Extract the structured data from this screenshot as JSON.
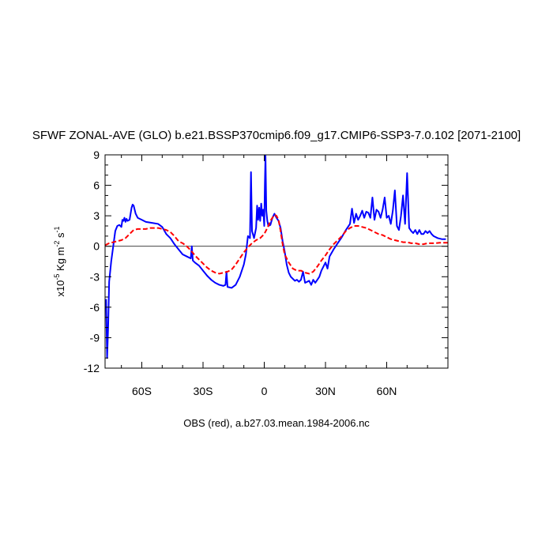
{
  "chart_data": {
    "type": "line",
    "title": "SFWF ZONAL-AVE (GLO) b.e21.BSSP370cmip6.f09_g17.CMIP6-SSP3-7.0.102 [2071-2100]",
    "xlabel": "OBS (red), a.b27.03.mean.1984-2006.nc",
    "ylabel": {
      "prefix": "x10",
      "exp1": "-5",
      "mid": " Kg m",
      "exp2": "-2",
      "mid2": " s",
      "exp3": "-1"
    },
    "xlim": [
      -78,
      90
    ],
    "ylim": [
      -12,
      9
    ],
    "x_ticks": [
      {
        "value": -60,
        "label": "60S"
      },
      {
        "value": -30,
        "label": "30S"
      },
      {
        "value": 0,
        "label": "0"
      },
      {
        "value": 30,
        "label": "30N"
      },
      {
        "value": 60,
        "label": "60N"
      }
    ],
    "y_ticks": [
      {
        "value": 9,
        "label": "9"
      },
      {
        "value": 6,
        "label": "6"
      },
      {
        "value": 3,
        "label": "3"
      },
      {
        "value": 0,
        "label": "0"
      },
      {
        "value": -3,
        "label": "-3"
      },
      {
        "value": -6,
        "label": "-6"
      },
      {
        "value": -9,
        "label": "-9"
      },
      {
        "value": -12,
        "label": "-12"
      }
    ],
    "zero_line": true,
    "series": [
      {
        "color": "#0000ff",
        "style": "solid",
        "points": [
          [
            -77.5,
            -5.2
          ],
          [
            -77,
            -11
          ],
          [
            -76.5,
            -8
          ],
          [
            -76,
            -3.5
          ],
          [
            -75,
            -1.5
          ],
          [
            -74,
            0
          ],
          [
            -73,
            1.5
          ],
          [
            -72,
            2.0
          ],
          [
            -71,
            2.1
          ],
          [
            -70,
            1.9
          ],
          [
            -69.5,
            2.6
          ],
          [
            -69,
            2.5
          ],
          [
            -68.5,
            2.8
          ],
          [
            -68,
            2.4
          ],
          [
            -67.5,
            2.7
          ],
          [
            -67,
            2.5
          ],
          [
            -66,
            2.6
          ],
          [
            -65,
            3.8
          ],
          [
            -64.5,
            4.1
          ],
          [
            -64,
            4.0
          ],
          [
            -63,
            3.2
          ],
          [
            -62,
            2.8
          ],
          [
            -60,
            2.6
          ],
          [
            -58,
            2.4
          ],
          [
            -55,
            2.3
          ],
          [
            -52,
            2.2
          ],
          [
            -50,
            1.9
          ],
          [
            -48,
            1.2
          ],
          [
            -46,
            0.8
          ],
          [
            -44,
            0.2
          ],
          [
            -42,
            -0.3
          ],
          [
            -40,
            -0.8
          ],
          [
            -38,
            -1.0
          ],
          [
            -36,
            -1.2
          ],
          [
            -35.5,
            0.0
          ],
          [
            -35,
            -1.4
          ],
          [
            -34,
            -1.6
          ],
          [
            -32,
            -1.9
          ],
          [
            -30,
            -2.4
          ],
          [
            -28,
            -2.9
          ],
          [
            -26,
            -3.3
          ],
          [
            -24,
            -3.6
          ],
          [
            -22,
            -3.8
          ],
          [
            -20,
            -3.9
          ],
          [
            -19,
            -3.8
          ],
          [
            -18.5,
            -2.5
          ],
          [
            -18,
            -4.0
          ],
          [
            -16,
            -4.1
          ],
          [
            -14,
            -3.8
          ],
          [
            -12,
            -3.0
          ],
          [
            -10,
            -1.8
          ],
          [
            -9,
            -0.8
          ],
          [
            -8,
            1.0
          ],
          [
            -7,
            0.8
          ],
          [
            -6.5,
            7.3
          ],
          [
            -6,
            1.5
          ],
          [
            -5,
            0.8
          ],
          [
            -4,
            1.8
          ],
          [
            -3.5,
            4.0
          ],
          [
            -3,
            2.6
          ],
          [
            -2.5,
            3.8
          ],
          [
            -2,
            2.5
          ],
          [
            -1.5,
            4.2
          ],
          [
            -1,
            3.0
          ],
          [
            -0.5,
            3.6
          ],
          [
            0,
            2.0
          ],
          [
            0.3,
            6.0
          ],
          [
            0.6,
            8.9
          ],
          [
            1,
            3.5
          ],
          [
            1.5,
            2.5
          ],
          [
            2,
            2.0
          ],
          [
            3,
            2.1
          ],
          [
            4,
            2.8
          ],
          [
            5,
            3.2
          ],
          [
            6,
            2.8
          ],
          [
            7,
            2.5
          ],
          [
            8,
            1.8
          ],
          [
            9,
            0.5
          ],
          [
            10,
            -0.5
          ],
          [
            11,
            -1.8
          ],
          [
            12,
            -2.6
          ],
          [
            13,
            -3.0
          ],
          [
            14,
            -3.2
          ],
          [
            15,
            -3.4
          ],
          [
            16,
            -3.3
          ],
          [
            17,
            -3.5
          ],
          [
            18,
            -3.3
          ],
          [
            19,
            -2.5
          ],
          [
            20,
            -3.6
          ],
          [
            22,
            -3.4
          ],
          [
            23,
            -3.8
          ],
          [
            24,
            -3.3
          ],
          [
            25,
            -3.6
          ],
          [
            26,
            -3.3
          ],
          [
            27,
            -3.0
          ],
          [
            28,
            -2.4
          ],
          [
            30,
            -1.6
          ],
          [
            31,
            -2.2
          ],
          [
            32,
            -1.0
          ],
          [
            34,
            -0.3
          ],
          [
            36,
            0.3
          ],
          [
            38,
            0.9
          ],
          [
            40,
            1.6
          ],
          [
            42,
            2.2
          ],
          [
            43,
            3.7
          ],
          [
            44,
            2.3
          ],
          [
            45,
            3.2
          ],
          [
            46,
            2.6
          ],
          [
            47,
            3.0
          ],
          [
            48,
            3.5
          ],
          [
            49,
            2.8
          ],
          [
            50,
            3.4
          ],
          [
            51,
            3.3
          ],
          [
            52,
            2.8
          ],
          [
            53,
            4.8
          ],
          [
            54,
            2.6
          ],
          [
            55,
            3.6
          ],
          [
            56,
            3.4
          ],
          [
            57,
            2.8
          ],
          [
            58,
            3.6
          ],
          [
            59,
            4.8
          ],
          [
            60,
            2.8
          ],
          [
            61,
            3.0
          ],
          [
            62,
            2.2
          ],
          [
            63,
            3.5
          ],
          [
            64,
            5.5
          ],
          [
            65,
            2.0
          ],
          [
            66,
            1.6
          ],
          [
            67,
            3.0
          ],
          [
            68,
            5.0
          ],
          [
            69,
            2.2
          ],
          [
            70,
            7.2
          ],
          [
            71,
            1.8
          ],
          [
            72,
            1.5
          ],
          [
            73,
            1.3
          ],
          [
            74,
            1.6
          ],
          [
            75,
            1.2
          ],
          [
            76,
            1.6
          ],
          [
            77,
            1.2
          ],
          [
            78,
            1.2
          ],
          [
            79,
            1.5
          ],
          [
            80,
            1.3
          ],
          [
            81,
            1.5
          ],
          [
            82,
            1.2
          ],
          [
            83,
            1.0
          ],
          [
            85,
            0.8
          ],
          [
            87,
            0.7
          ],
          [
            89,
            0.7
          ]
        ]
      },
      {
        "color": "#ff0000",
        "style": "dashed",
        "points": [
          [
            -78,
            0.1
          ],
          [
            -76,
            0.3
          ],
          [
            -74,
            0.4
          ],
          [
            -72,
            0.5
          ],
          [
            -70,
            0.6
          ],
          [
            -68,
            0.8
          ],
          [
            -66,
            1.2
          ],
          [
            -64,
            1.6
          ],
          [
            -62,
            1.7
          ],
          [
            -60,
            1.7
          ],
          [
            -58,
            1.7
          ],
          [
            -56,
            1.8
          ],
          [
            -54,
            1.8
          ],
          [
            -52,
            1.8
          ],
          [
            -50,
            1.7
          ],
          [
            -48,
            1.6
          ],
          [
            -46,
            1.4
          ],
          [
            -44,
            1.0
          ],
          [
            -42,
            0.5
          ],
          [
            -40,
            0.3
          ],
          [
            -38,
            0.0
          ],
          [
            -36,
            -0.4
          ],
          [
            -34,
            -0.9
          ],
          [
            -32,
            -1.3
          ],
          [
            -30,
            -1.7
          ],
          [
            -28,
            -2.1
          ],
          [
            -26,
            -2.4
          ],
          [
            -24,
            -2.6
          ],
          [
            -22,
            -2.7
          ],
          [
            -20,
            -2.6
          ],
          [
            -18,
            -2.5
          ],
          [
            -16,
            -2.3
          ],
          [
            -14,
            -1.8
          ],
          [
            -12,
            -1.2
          ],
          [
            -10,
            -0.6
          ],
          [
            -8,
            -0.1
          ],
          [
            -6,
            0.3
          ],
          [
            -4,
            0.6
          ],
          [
            -2,
            0.8
          ],
          [
            0,
            1.2
          ],
          [
            2,
            2.0
          ],
          [
            3,
            2.5
          ],
          [
            4,
            2.8
          ],
          [
            5,
            3.1
          ],
          [
            6,
            3.0
          ],
          [
            7,
            2.6
          ],
          [
            8,
            1.5
          ],
          [
            9,
            0.2
          ],
          [
            10,
            -0.8
          ],
          [
            12,
            -1.6
          ],
          [
            14,
            -2.2
          ],
          [
            16,
            -2.4
          ],
          [
            18,
            -2.4
          ],
          [
            20,
            -2.6
          ],
          [
            22,
            -2.7
          ],
          [
            24,
            -2.5
          ],
          [
            26,
            -2.0
          ],
          [
            28,
            -1.4
          ],
          [
            30,
            -0.9
          ],
          [
            32,
            -0.3
          ],
          [
            34,
            0.2
          ],
          [
            36,
            0.6
          ],
          [
            38,
            1.0
          ],
          [
            40,
            1.5
          ],
          [
            42,
            1.8
          ],
          [
            44,
            2.0
          ],
          [
            46,
            2.0
          ],
          [
            48,
            1.9
          ],
          [
            50,
            1.8
          ],
          [
            52,
            1.6
          ],
          [
            54,
            1.4
          ],
          [
            56,
            1.2
          ],
          [
            58,
            1.1
          ],
          [
            60,
            0.9
          ],
          [
            62,
            0.7
          ],
          [
            64,
            0.6
          ],
          [
            66,
            0.5
          ],
          [
            68,
            0.4
          ],
          [
            70,
            0.4
          ],
          [
            72,
            0.3
          ],
          [
            74,
            0.3
          ],
          [
            76,
            0.2
          ],
          [
            78,
            0.2
          ],
          [
            80,
            0.3
          ],
          [
            82,
            0.3
          ],
          [
            84,
            0.3
          ],
          [
            86,
            0.35
          ],
          [
            88,
            0.35
          ],
          [
            90,
            0.35
          ]
        ]
      }
    ]
  }
}
